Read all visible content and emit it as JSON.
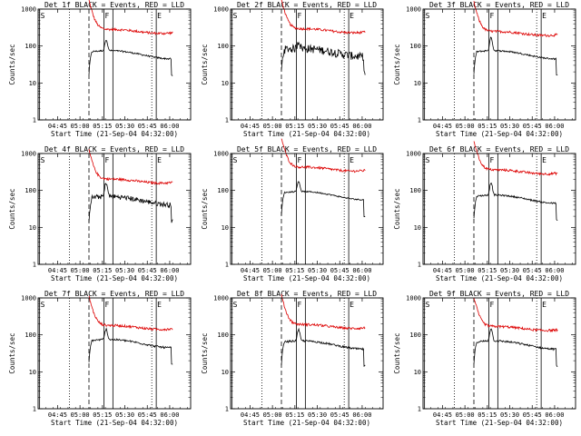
{
  "chart_data": {
    "type": "line",
    "shared": {
      "xlabel": "Start Time (21-Sep-04 04:32:00)",
      "ylabel": "Counts/sec",
      "yscale": "log",
      "ylim": [
        1,
        1000
      ],
      "y_tick_labels": [
        "1",
        "10",
        "100",
        "1000"
      ],
      "xlim_minutes": [
        0,
        102
      ],
      "x_tick_minutes": [
        13,
        28,
        43,
        58,
        73,
        88
      ],
      "x_tick_labels": [
        "04:45",
        "05:00",
        "05:15",
        "05:30",
        "05:45",
        "06:00"
      ],
      "series_names": [
        "Events",
        "LLD"
      ],
      "series_colors": {
        "Events": "#000000",
        "LLD": "#dd0000"
      },
      "markers": [
        {
          "label": "S",
          "minute": 1,
          "style": "solid"
        },
        {
          "label": "",
          "minute": 21,
          "style": "dotted"
        },
        {
          "label": "",
          "minute": 34,
          "style": "dashed"
        },
        {
          "label": "F",
          "minute": 44,
          "style": "solid"
        },
        {
          "label": "",
          "minute": 50,
          "style": "solid"
        },
        {
          "label": "",
          "minute": 76,
          "style": "dotted"
        },
        {
          "label": "E",
          "minute": 79,
          "style": "solid"
        }
      ],
      "data_window_minutes": [
        34,
        90
      ]
    },
    "panels": [
      {
        "title": "Det 1f BLACK = Events, RED = LLD",
        "events_level": 60,
        "lld_level": 250,
        "spike": 2.0,
        "noise": 0.05
      },
      {
        "title": "Det 2f BLACK = Events, RED = LLD",
        "events_level": 70,
        "lld_level": 260,
        "spike": 1.6,
        "noise": 0.25
      },
      {
        "title": "Det 3f BLACK = Events, RED = LLD",
        "events_level": 60,
        "lld_level": 220,
        "spike": 2.3,
        "noise": 0.05
      },
      {
        "title": "Det 4f BLACK = Events, RED = LLD",
        "events_level": 55,
        "lld_level": 180,
        "spike": 2.4,
        "noise": 0.15
      },
      {
        "title": "Det 5f BLACK = Events, RED = LLD",
        "events_level": 75,
        "lld_level": 380,
        "spike": 1.9,
        "noise": 0.04
      },
      {
        "title": "Det 6f BLACK = Events, RED = LLD",
        "events_level": 60,
        "lld_level": 320,
        "spike": 2.2,
        "noise": 0.05
      },
      {
        "title": "Det 7f BLACK = Events, RED = LLD",
        "events_level": 60,
        "lld_level": 160,
        "spike": 1.9,
        "noise": 0.06
      },
      {
        "title": "Det 8f BLACK = Events, RED = LLD",
        "events_level": 55,
        "lld_level": 170,
        "spike": 2.0,
        "noise": 0.06
      },
      {
        "title": "Det 9f BLACK = Events, RED = LLD",
        "events_level": 55,
        "lld_level": 150,
        "spike": 2.2,
        "noise": 0.06
      }
    ]
  }
}
